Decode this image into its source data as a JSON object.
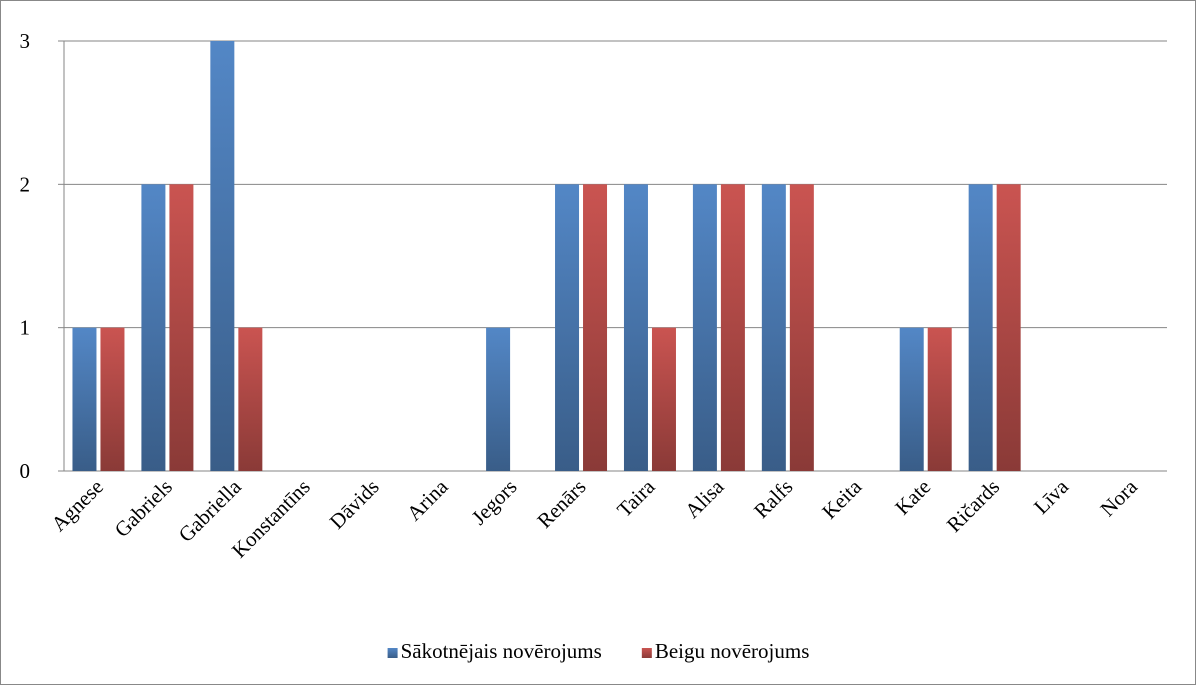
{
  "chart_data": {
    "type": "bar",
    "categories": [
      "Agnese",
      "Gabriels",
      "Gabriella",
      "Konstantīns",
      "Dāvids",
      "Arina",
      "Jegors",
      "Renārs",
      "Taira",
      "Alisa",
      "Ralfs",
      "Keita",
      "Kate",
      "Ričards",
      "Līva",
      "Nora"
    ],
    "series": [
      {
        "name": "Sākotnējais novērojums",
        "color": "#4f81bd",
        "values": [
          1,
          2,
          3,
          0,
          0,
          0,
          1,
          2,
          2,
          2,
          2,
          0,
          1,
          2,
          0,
          0
        ]
      },
      {
        "name": "Beigu novērojums",
        "color": "#c0504d",
        "values": [
          1,
          2,
          1,
          0,
          0,
          0,
          0,
          2,
          1,
          2,
          2,
          0,
          1,
          2,
          0,
          0
        ]
      }
    ],
    "ylim": [
      0,
      3
    ],
    "yticks": [
      0,
      1,
      2,
      3
    ],
    "grid": true,
    "legend": "bottom"
  }
}
